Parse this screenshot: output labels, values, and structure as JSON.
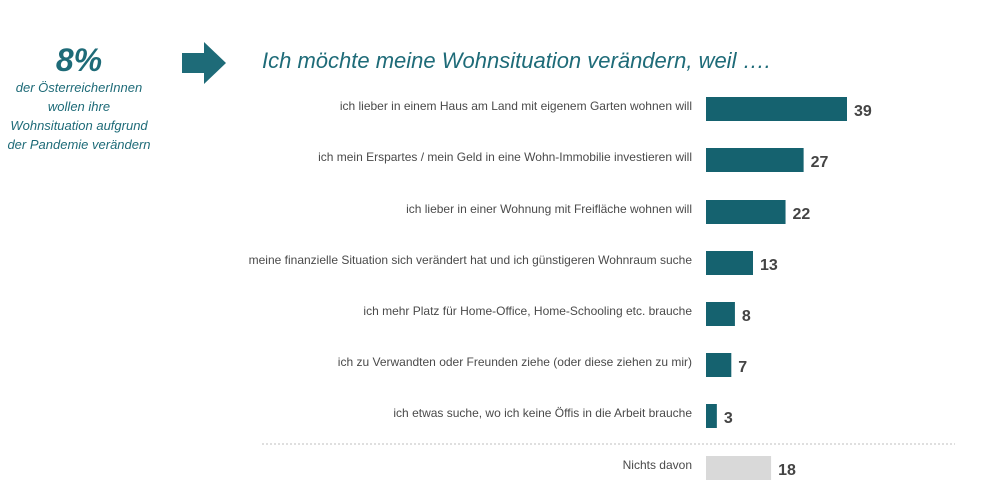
{
  "headline": {
    "percent": "8%",
    "lines": [
      "der ÖsterreicherInnen",
      "wollen ihre",
      "Wohnsituation aufgrund",
      "der Pandemie verändern"
    ]
  },
  "colors": {
    "accent": "#1e6b78",
    "bar": "#15626f",
    "bar_other": "#d9d9d9",
    "text": "#4a4a4a"
  },
  "chart_data": {
    "type": "bar",
    "orientation": "horizontal",
    "title": "Ich möchte meine Wohnsituation verändern, weil ….",
    "categories": [
      "ich lieber in einem Haus am Land mit eigenem Garten wohnen will",
      "ich mein Erspartes / mein Geld in eine Wohn-Immobilie investieren will",
      "ich lieber in einer Wohnung mit Freifläche wohnen will",
      "meine finanzielle Situation sich verändert hat und ich günstigeren Wohnraum suche",
      "ich mehr Platz für Home-Office, Home-Schooling etc. brauche",
      "ich zu Verwandten oder Freunden ziehe (oder diese ziehen zu mir)",
      "ich etwas suche, wo ich keine Öffis in die Arbeit brauche",
      "Nichts davon"
    ],
    "values": [
      39,
      27,
      22,
      13,
      8,
      7,
      3,
      18
    ],
    "highlight": [
      true,
      true,
      true,
      true,
      true,
      true,
      true,
      false
    ],
    "separator_before_last": true,
    "xlim": [
      0,
      39
    ],
    "grid": false
  }
}
